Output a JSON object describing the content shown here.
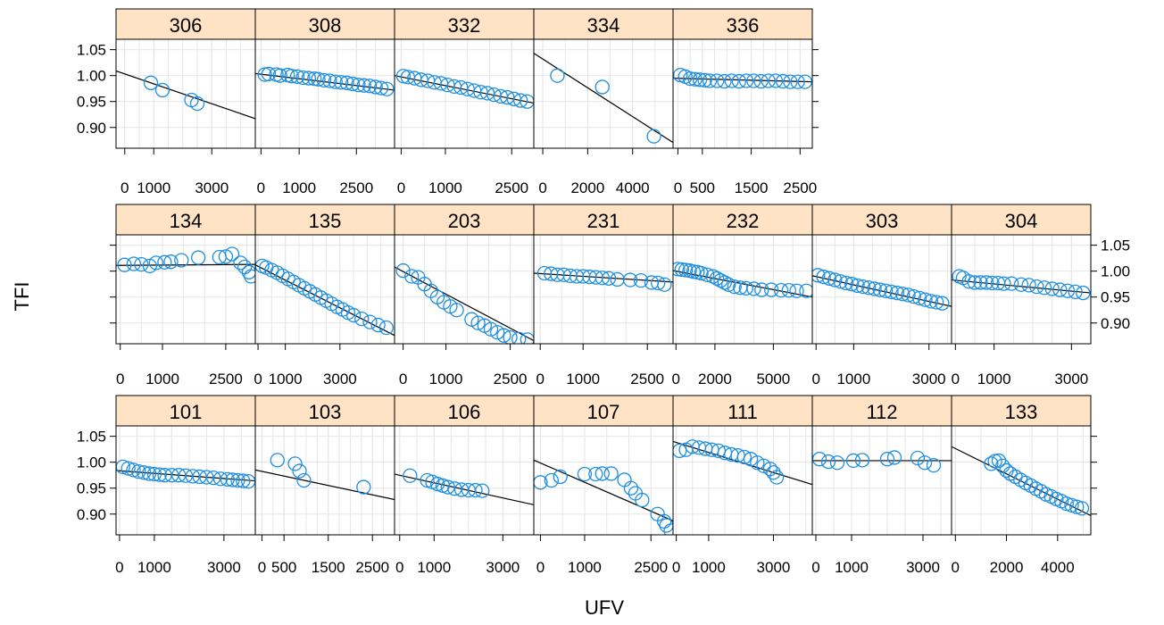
{
  "chart_data": {
    "type": "scatter",
    "subtype": "trellis-scatter-with-regression-line",
    "xlabel": "UFV",
    "ylabel": "TFI",
    "ylim": [
      0.86,
      1.07
    ],
    "y_ticks": [
      0.9,
      0.95,
      1.0,
      1.05
    ],
    "grid": true,
    "marker": "open-circle",
    "colors": {
      "points": "#1f8fe0",
      "line": "#000000",
      "strip": "#ffe3c4",
      "grid": "#e6e6e6"
    },
    "panels": [
      {
        "id": "306",
        "row": 1,
        "xlim": [
          -300,
          4500
        ],
        "x_ticks": [
          0,
          1000,
          3000
        ],
        "x": [
          900,
          1300,
          2300,
          2500
        ],
        "y": [
          0.986,
          0.972,
          0.953,
          0.946
        ],
        "fit": {
          "x": [
            -300,
            4500
          ],
          "y": [
            1.009,
            0.917
          ]
        }
      },
      {
        "id": "308",
        "row": 1,
        "xlim": [
          -150,
          3500
        ],
        "x_ticks": [
          0,
          1000,
          2500
        ],
        "x": [
          100,
          200,
          400,
          500,
          700,
          800,
          950,
          1100,
          1250,
          1400,
          1500,
          1650,
          1800,
          1950,
          2100,
          2250,
          2400,
          2550,
          2700,
          2850,
          3000,
          3150,
          3300
        ],
        "y": [
          1.002,
          1.003,
          1.002,
          1.0,
          1.001,
          0.999,
          0.998,
          0.996,
          0.995,
          0.994,
          0.993,
          0.991,
          0.99,
          0.988,
          0.987,
          0.986,
          0.984,
          0.982,
          0.981,
          0.98,
          0.978,
          0.976,
          0.974
        ],
        "fit": {
          "x": [
            -150,
            3500
          ],
          "y": [
            1.004,
            0.972
          ]
        }
      },
      {
        "id": "332",
        "row": 1,
        "xlim": [
          -150,
          3000
        ],
        "x_ticks": [
          0,
          1000,
          2500
        ],
        "x": [
          50,
          150,
          300,
          450,
          600,
          750,
          900,
          1050,
          1200,
          1350,
          1500,
          1650,
          1800,
          1950,
          2100,
          2250,
          2400,
          2550,
          2700,
          2850
        ],
        "y": [
          0.999,
          0.997,
          0.995,
          0.992,
          0.99,
          0.987,
          0.985,
          0.982,
          0.979,
          0.977,
          0.974,
          0.971,
          0.968,
          0.966,
          0.963,
          0.96,
          0.958,
          0.955,
          0.952,
          0.95
        ],
        "fit": {
          "x": [
            -150,
            3000
          ],
          "y": [
            1.0,
            0.947
          ]
        }
      },
      {
        "id": "334",
        "row": 1,
        "xlim": [
          -400,
          5800
        ],
        "x_ticks": [
          0,
          2000,
          4000
        ],
        "x": [
          650,
          2650,
          4950
        ],
        "y": [
          1.0,
          0.978,
          0.883
        ],
        "fit": {
          "x": [
            -400,
            5800
          ],
          "y": [
            1.043,
            0.871
          ]
        }
      },
      {
        "id": "336",
        "row": 1,
        "xlim": [
          -100,
          2750
        ],
        "x_ticks": [
          0,
          500,
          1500,
          2500
        ],
        "x": [
          50,
          150,
          250,
          350,
          450,
          550,
          650,
          800,
          950,
          1100,
          1250,
          1400,
          1550,
          1700,
          1850,
          2000,
          2150,
          2300,
          2450,
          2600
        ],
        "y": [
          1.001,
          0.998,
          0.994,
          0.993,
          0.992,
          0.991,
          0.99,
          0.99,
          0.989,
          0.99,
          0.989,
          0.99,
          0.99,
          0.989,
          0.99,
          0.99,
          0.989,
          0.988,
          0.988,
          0.988
        ],
        "fit": {
          "x": [
            -100,
            2750
          ],
          "y": [
            0.995,
            0.988
          ]
        }
      },
      {
        "id": "134",
        "row": 2,
        "xlim": [
          -100,
          3200
        ],
        "x_ticks": [
          0,
          1000,
          2500
        ],
        "x": [
          100,
          320,
          500,
          700,
          850,
          1050,
          1200,
          1450,
          1850,
          2350,
          2500,
          2650,
          2850,
          2950,
          3050,
          3100
        ],
        "y": [
          1.012,
          1.014,
          1.013,
          1.01,
          1.016,
          1.017,
          1.018,
          1.021,
          1.026,
          1.027,
          1.028,
          1.033,
          1.016,
          1.008,
          0.998,
          0.99
        ],
        "fit": {
          "x": [
            -100,
            3200
          ],
          "y": [
            1.011,
            1.013
          ]
        }
      },
      {
        "id": "135",
        "row": 2,
        "xlim": [
          -100,
          5000
        ],
        "x_ticks": [
          0,
          1000,
          3000
        ],
        "x": [
          150,
          300,
          500,
          700,
          900,
          1100,
          1300,
          1500,
          1700,
          1900,
          2100,
          2300,
          2500,
          2700,
          2900,
          3100,
          3300,
          3500,
          3800,
          4100,
          4400,
          4700
        ],
        "y": [
          1.01,
          1.007,
          1.002,
          0.997,
          0.991,
          0.985,
          0.979,
          0.973,
          0.967,
          0.961,
          0.955,
          0.949,
          0.943,
          0.937,
          0.931,
          0.926,
          0.92,
          0.915,
          0.908,
          0.902,
          0.896,
          0.891
        ],
        "fit": {
          "x": [
            -100,
            5000
          ],
          "y": [
            1.012,
            0.876
          ]
        }
      },
      {
        "id": "203",
        "row": 2,
        "xlim": [
          -200,
          3050
        ],
        "x_ticks": [
          0,
          1000,
          2500
        ],
        "x": [
          0,
          200,
          350,
          500,
          650,
          800,
          950,
          1100,
          1250,
          1600,
          1750,
          1900,
          2050,
          2200,
          2350,
          2500,
          2700,
          2900
        ],
        "y": [
          1.001,
          0.99,
          0.988,
          0.975,
          0.962,
          0.95,
          0.94,
          0.932,
          0.925,
          0.907,
          0.9,
          0.895,
          0.888,
          0.882,
          0.876,
          0.872,
          0.869,
          0.868
        ],
        "fit": {
          "x": [
            -200,
            3050
          ],
          "y": [
            1.008,
            0.866
          ]
        }
      },
      {
        "id": "231",
        "row": 2,
        "xlim": [
          -150,
          3100
        ],
        "x_ticks": [
          0,
          1000,
          2500
        ],
        "x": [
          100,
          250,
          400,
          550,
          700,
          850,
          1000,
          1150,
          1300,
          1450,
          1600,
          1800,
          2100,
          2350,
          2600,
          2750,
          2900
        ],
        "y": [
          0.996,
          0.995,
          0.993,
          0.993,
          0.991,
          0.99,
          0.99,
          0.989,
          0.988,
          0.987,
          0.986,
          0.984,
          0.983,
          0.982,
          0.978,
          0.977,
          0.974
        ],
        "fit": {
          "x": [
            -150,
            3100
          ],
          "y": [
            0.996,
            0.979
          ]
        }
      },
      {
        "id": "232",
        "row": 2,
        "xlim": [
          -150,
          7000
        ],
        "x_ticks": [
          0,
          2000,
          5000
        ],
        "x": [
          100,
          300,
          500,
          700,
          900,
          1100,
          1300,
          1600,
          1900,
          2100,
          2300,
          2500,
          2700,
          3000,
          3300,
          3600,
          4000,
          4400,
          4900,
          5400,
          5800,
          6200,
          6700
        ],
        "y": [
          1.004,
          1.003,
          1.002,
          1.001,
          0.999,
          0.998,
          0.996,
          0.993,
          0.99,
          0.986,
          0.982,
          0.978,
          0.974,
          0.97,
          0.968,
          0.967,
          0.966,
          0.964,
          0.964,
          0.963,
          0.963,
          0.962,
          0.962
        ],
        "fit": {
          "x": [
            -150,
            7000
          ],
          "y": [
            1.001,
            0.95
          ]
        }
      },
      {
        "id": "303",
        "row": 2,
        "xlim": [
          -100,
          3600
        ],
        "x_ticks": [
          0,
          1000,
          3000
        ],
        "x": [
          50,
          200,
          350,
          500,
          650,
          800,
          950,
          1100,
          1250,
          1400,
          1550,
          1700,
          1850,
          2000,
          2150,
          2300,
          2450,
          2600,
          2750,
          2900,
          3050,
          3200,
          3350
        ],
        "y": [
          0.992,
          0.989,
          0.986,
          0.983,
          0.98,
          0.977,
          0.975,
          0.972,
          0.97,
          0.968,
          0.966,
          0.964,
          0.962,
          0.96,
          0.958,
          0.956,
          0.954,
          0.951,
          0.948,
          0.945,
          0.942,
          0.94,
          0.938
        ],
        "fit": {
          "x": [
            -100,
            3600
          ],
          "y": [
            0.991,
            0.932
          ]
        }
      },
      {
        "id": "304",
        "row": 2,
        "xlim": [
          -100,
          3500
        ],
        "x_ticks": [
          0,
          1000,
          3000
        ],
        "x": [
          100,
          200,
          350,
          500,
          650,
          800,
          950,
          1100,
          1250,
          1450,
          1700,
          1900,
          2100,
          2300,
          2500,
          2700,
          2900,
          3100,
          3300
        ],
        "y": [
          0.99,
          0.987,
          0.98,
          0.978,
          0.978,
          0.978,
          0.977,
          0.977,
          0.976,
          0.976,
          0.974,
          0.973,
          0.97,
          0.968,
          0.966,
          0.964,
          0.962,
          0.96,
          0.958
        ],
        "fit": {
          "x": [
            -100,
            3500
          ],
          "y": [
            0.983,
            0.958
          ]
        }
      },
      {
        "id": "101",
        "row": 3,
        "xlim": [
          -100,
          3900
        ],
        "x_ticks": [
          0,
          1000,
          3000
        ],
        "x": [
          100,
          250,
          400,
          550,
          700,
          850,
          1000,
          1150,
          1300,
          1500,
          1700,
          1900,
          2100,
          2300,
          2500,
          2700,
          2900,
          3100,
          3250,
          3400,
          3550,
          3700
        ],
        "y": [
          0.991,
          0.988,
          0.985,
          0.982,
          0.98,
          0.978,
          0.977,
          0.976,
          0.975,
          0.975,
          0.975,
          0.974,
          0.973,
          0.972,
          0.971,
          0.97,
          0.968,
          0.967,
          0.966,
          0.965,
          0.964,
          0.963
        ],
        "fit": {
          "x": [
            -100,
            3900
          ],
          "y": [
            0.984,
            0.964
          ]
        }
      },
      {
        "id": "103",
        "row": 3,
        "xlim": [
          -150,
          3000
        ],
        "x_ticks": [
          0,
          500,
          1500,
          2500
        ],
        "x": [
          350,
          750,
          850,
          950,
          2300
        ],
        "y": [
          1.004,
          0.997,
          0.983,
          0.965,
          0.952
        ],
        "fit": {
          "x": [
            -150,
            3000
          ],
          "y": [
            0.985,
            0.928
          ]
        }
      },
      {
        "id": "106",
        "row": 3,
        "xlim": [
          -150,
          3900
        ],
        "x_ticks": [
          0,
          1000,
          3000
        ],
        "x": [
          300,
          800,
          950,
          1100,
          1250,
          1400,
          1600,
          1800,
          2000,
          2200,
          2400
        ],
        "y": [
          0.974,
          0.965,
          0.962,
          0.958,
          0.955,
          0.952,
          0.949,
          0.947,
          0.946,
          0.946,
          0.945
        ],
        "fit": {
          "x": [
            -150,
            3900
          ],
          "y": [
            0.977,
            0.918
          ]
        }
      },
      {
        "id": "107",
        "row": 3,
        "xlim": [
          -150,
          3000
        ],
        "x_ticks": [
          0,
          1000,
          2500
        ],
        "x": [
          0,
          250,
          450,
          1000,
          1250,
          1400,
          1600,
          1900,
          2050,
          2150,
          2300,
          2650,
          2800,
          2850,
          2950
        ],
        "y": [
          0.961,
          0.965,
          0.972,
          0.977,
          0.977,
          0.978,
          0.978,
          0.966,
          0.95,
          0.94,
          0.927,
          0.9,
          0.886,
          0.878,
          0.868
        ],
        "fit": {
          "x": [
            -150,
            3000
          ],
          "y": [
            1.004,
            0.887
          ]
        }
      },
      {
        "id": "111",
        "row": 3,
        "xlim": [
          -100,
          4200
        ],
        "x_ticks": [
          0,
          1000,
          3000
        ],
        "x": [
          100,
          300,
          500,
          700,
          900,
          1100,
          1300,
          1500,
          1700,
          1900,
          2100,
          2300,
          2500,
          2700,
          2900,
          3000,
          3100
        ],
        "y": [
          1.022,
          1.024,
          1.03,
          1.028,
          1.026,
          1.024,
          1.022,
          1.018,
          1.015,
          1.013,
          1.01,
          1.006,
          0.999,
          0.993,
          0.987,
          0.98,
          0.971
        ],
        "fit": {
          "x": [
            -100,
            4200
          ],
          "y": [
            1.04,
            0.957
          ]
        }
      },
      {
        "id": "112",
        "row": 3,
        "xlim": [
          -100,
          3800
        ],
        "x_ticks": [
          0,
          1000,
          3000
        ],
        "x": [
          100,
          350,
          600,
          1050,
          1300,
          2000,
          2200,
          2850,
          3050,
          3300
        ],
        "y": [
          1.006,
          1.001,
          0.999,
          1.003,
          1.004,
          1.006,
          1.009,
          1.008,
          0.999,
          0.994
        ],
        "fit": {
          "x": [
            -100,
            3800
          ],
          "y": [
            1.003,
            1.003
          ]
        }
      },
      {
        "id": "133",
        "row": 3,
        "xlim": [
          -150,
          5300
        ],
        "x_ticks": [
          0,
          2000,
          4000
        ],
        "x": [
          1400,
          1550,
          1700,
          1850,
          2000,
          2150,
          2350,
          2550,
          2750,
          2950,
          3150,
          3350,
          3550,
          3750,
          3950,
          4150,
          4350,
          4550,
          4750,
          4950
        ],
        "y": [
          0.997,
          1.002,
          1.003,
          0.993,
          0.984,
          0.978,
          0.972,
          0.966,
          0.96,
          0.955,
          0.949,
          0.944,
          0.938,
          0.934,
          0.929,
          0.925,
          0.92,
          0.917,
          0.914,
          0.911
        ],
        "fit": {
          "x": [
            -150,
            5300
          ],
          "y": [
            1.03,
            0.897
          ]
        }
      }
    ]
  }
}
